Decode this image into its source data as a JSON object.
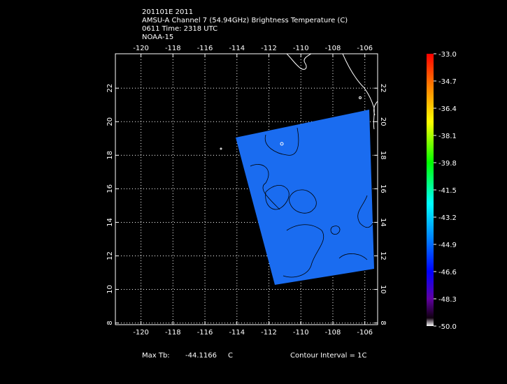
{
  "header": {
    "lines": [
      "201101E 2011",
      "AMSU-A Channel 7 (54.94GHz) Brightness Temperature (C)",
      "0611 Time: 2318 UTC",
      "NOAA-15"
    ]
  },
  "map": {
    "xlim": [
      -121.6,
      -105.2
    ],
    "ylim": [
      7.9,
      24.05
    ],
    "lon_ticks": [
      -120,
      -118,
      -116,
      -114,
      -112,
      -110,
      -108,
      -106
    ],
    "lat_ticks": [
      8,
      10,
      12,
      14,
      16,
      18,
      20,
      22
    ],
    "grid": true
  },
  "colorbar": {
    "range": [
      -50,
      -33
    ],
    "ticks": [
      {
        "value": -33,
        "label": "-33.0"
      },
      {
        "value": -34.7,
        "label": "-34.7"
      },
      {
        "value": -36.4,
        "label": "-36.4"
      },
      {
        "value": -38.1,
        "label": "-38.1"
      },
      {
        "value": -39.8,
        "label": "-39.8"
      },
      {
        "value": -41.5,
        "label": "-41.5"
      },
      {
        "value": -43.2,
        "label": "-43.2"
      },
      {
        "value": -44.9,
        "label": "-44.9"
      },
      {
        "value": -46.6,
        "label": "-46.6"
      },
      {
        "value": -48.3,
        "label": "-48.3"
      },
      {
        "value": -50,
        "label": "-50.0"
      }
    ]
  },
  "footer": {
    "max_label": "Max Tb:",
    "max_value": "-44.1166",
    "max_unit": "C",
    "contour": "Contour Interval = 1C"
  }
}
